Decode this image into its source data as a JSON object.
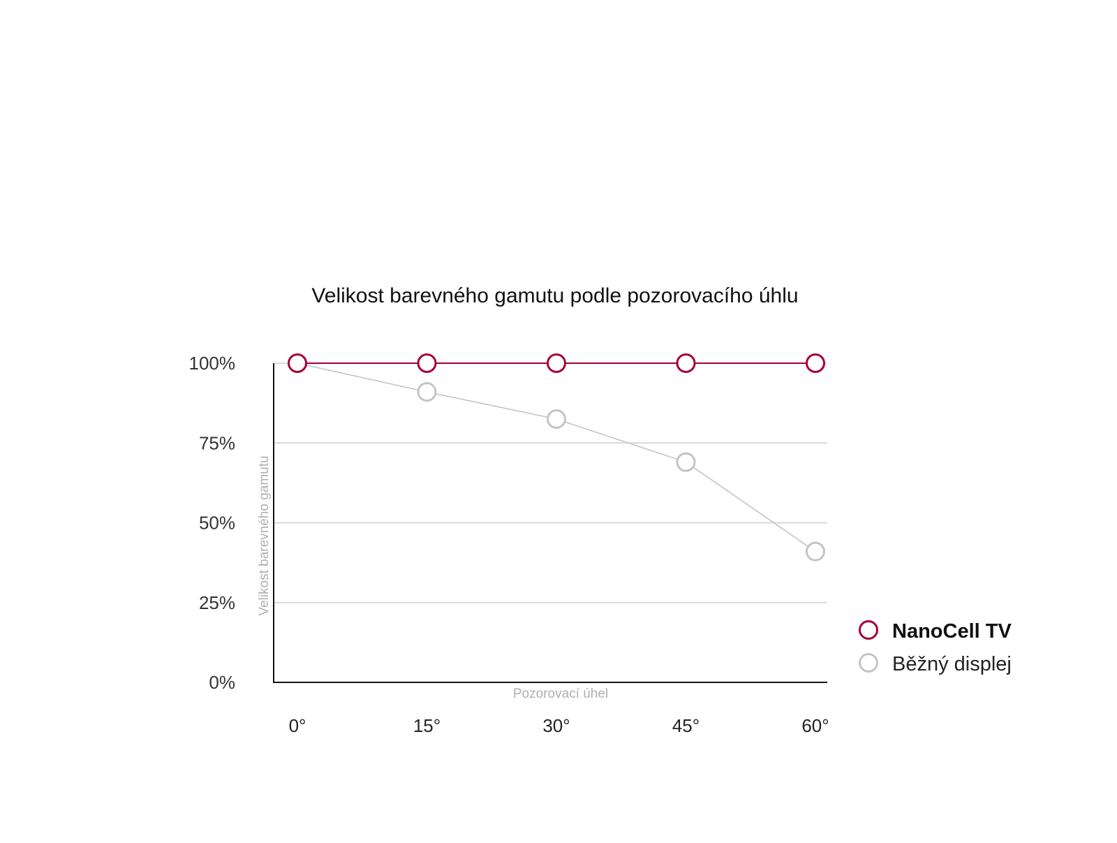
{
  "chart_data": {
    "type": "line",
    "title": "Velikost barevného gamutu podle pozorovacího úhlu",
    "xlabel": "Pozorovací úhel",
    "ylabel": "Velikost barevného gamutu",
    "categories": [
      "0°",
      "15°",
      "30°",
      "45°",
      "60°"
    ],
    "x": [
      0,
      15,
      30,
      45,
      60
    ],
    "yticks": [
      "100%",
      "75%",
      "50%",
      "25%",
      "0%"
    ],
    "ylim": [
      0,
      100
    ],
    "grid": true,
    "legend_position": "right",
    "series": [
      {
        "name": "NanoCell TV",
        "color": "#a50034",
        "values": [
          100,
          100,
          100,
          100,
          100
        ]
      },
      {
        "name": "Běžný displej",
        "color": "#c4c4c4",
        "values": [
          100,
          91,
          82.5,
          69,
          41
        ]
      }
    ]
  }
}
